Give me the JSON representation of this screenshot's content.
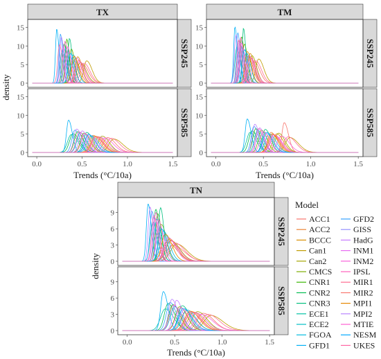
{
  "chart_data": {
    "type": "line",
    "title": "",
    "xlabel": "Trends (°C/10a)",
    "ylabel": "density",
    "xlim": [
      -0.1,
      1.55
    ],
    "x_ticks": [
      0.0,
      0.5,
      1.0,
      1.5
    ],
    "x_tick_labels": [
      "0.0",
      "0.5",
      "1.0",
      "1.5"
    ],
    "grid": false,
    "legend_title": "Model",
    "legend_placement": "bottom-right",
    "models": [
      {
        "name": "ACC1",
        "color": "#F8766D"
      },
      {
        "name": "ACC2",
        "color": "#EB8335"
      },
      {
        "name": "BCCC",
        "color": "#D98F00"
      },
      {
        "name": "Can1",
        "color": "#C09B00"
      },
      {
        "name": "Can2",
        "color": "#A3A500"
      },
      {
        "name": "CMCS",
        "color": "#7CAE00"
      },
      {
        "name": "CNR1",
        "color": "#39B600"
      },
      {
        "name": "CNR2",
        "color": "#00BB4E"
      },
      {
        "name": "CNR3",
        "color": "#00BF7D"
      },
      {
        "name": "ECE1",
        "color": "#00C1A3"
      },
      {
        "name": "ECE2",
        "color": "#00BFC4"
      },
      {
        "name": "FGOA",
        "color": "#00BAE0"
      },
      {
        "name": "GFD1",
        "color": "#00B0F6"
      },
      {
        "name": "GFD2",
        "color": "#35A2FF"
      },
      {
        "name": "GISS",
        "color": "#9590FF"
      },
      {
        "name": "HadG",
        "color": "#C77CFF"
      },
      {
        "name": "INM1",
        "color": "#E76BF3"
      },
      {
        "name": "INM2",
        "color": "#FA62DB"
      },
      {
        "name": "IPSL",
        "color": "#FF62BC"
      },
      {
        "name": "MIR1",
        "color": "#FF6C91"
      },
      {
        "name": "MIR2",
        "color": "#F8766D"
      },
      {
        "name": "MPI1",
        "color": "#E58700"
      },
      {
        "name": "MPI2",
        "color": "#B983FF"
      },
      {
        "name": "MTIE",
        "color": "#FD61D1"
      },
      {
        "name": "NESM",
        "color": "#00A9FF"
      },
      {
        "name": "UKES",
        "color": "#FF67A4"
      }
    ],
    "panels": [
      {
        "variable": "TX",
        "scenarios": [
          {
            "scenario": "SSP245",
            "ylim": [
              0,
              16
            ],
            "y_ticks": [
              0,
              5,
              10,
              15
            ],
            "peak_x": [
              0.5,
              0.42,
              0.45,
              0.55,
              0.48,
              0.38,
              0.33,
              0.3,
              0.36,
              0.28,
              0.32,
              0.4,
              0.22,
              0.26,
              0.35,
              0.29,
              0.44,
              0.47,
              0.31,
              0.52,
              0.46,
              0.41,
              0.27,
              0.34,
              0.37,
              0.25
            ],
            "peak_y": [
              5.2,
              6.4,
              7.1,
              6.0,
              5.6,
              9.2,
              11.8,
              10.6,
              12.0,
              8.8,
              9.5,
              7.6,
              14.6,
              13.2,
              8.4,
              10.0,
              6.8,
              5.9,
              11.2,
              5.4,
              6.2,
              7.3,
              12.4,
              9.8,
              8.0,
              10.4
            ]
          },
          {
            "scenario": "SSP585",
            "ylim": [
              0,
              16
            ],
            "y_ticks": [
              0,
              5,
              10,
              15
            ],
            "peak_x": [
              0.78,
              0.62,
              0.68,
              0.85,
              0.72,
              0.52,
              0.45,
              0.4,
              0.55,
              0.38,
              0.48,
              0.6,
              0.35,
              0.42,
              0.58,
              0.5,
              0.7,
              0.75,
              0.47,
              0.82,
              0.66,
              0.64,
              0.44,
              0.53,
              0.57,
              0.65
            ],
            "peak_y": [
              4.0,
              4.6,
              4.2,
              3.6,
              4.4,
              5.2,
              5.6,
              5.0,
              5.4,
              4.8,
              5.3,
              4.5,
              8.7,
              6.0,
              4.7,
              5.8,
              4.1,
              3.9,
              5.5,
              3.8,
              4.3,
              4.4,
              6.3,
              5.1,
              4.9,
              4.2
            ]
          }
        ]
      },
      {
        "variable": "TM",
        "scenarios": [
          {
            "scenario": "SSP245",
            "ylim": [
              0,
              16
            ],
            "y_ticks": [
              0,
              5,
              10,
              15
            ],
            "peak_x": [
              0.4,
              0.34,
              0.36,
              0.45,
              0.38,
              0.3,
              0.27,
              0.24,
              0.29,
              0.22,
              0.26,
              0.32,
              0.2,
              0.23,
              0.28,
              0.25,
              0.35,
              0.37,
              0.26,
              0.42,
              0.36,
              0.33,
              0.21,
              0.27,
              0.3,
              0.24
            ],
            "peak_y": [
              6.0,
              7.2,
              8.0,
              6.5,
              7.4,
              10.5,
              12.5,
              11.4,
              14.8,
              9.6,
              10.2,
              8.2,
              15.2,
              13.6,
              9.2,
              11.2,
              7.5,
              6.8,
              12.2,
              6.0,
              7.0,
              8.5,
              13.0,
              10.8,
              9.0,
              11.6
            ]
          },
          {
            "scenario": "SSP585",
            "ylim": [
              0,
              16
            ],
            "y_ticks": [
              0,
              5,
              10,
              15
            ],
            "peak_x": [
              0.72,
              0.58,
              0.64,
              0.78,
              0.66,
              0.48,
              0.42,
              0.38,
              0.52,
              0.36,
              0.44,
              0.56,
              0.33,
              0.4,
              0.54,
              0.46,
              0.62,
              0.69,
              0.45,
              0.76,
              0.6,
              0.59,
              0.41,
              0.5,
              0.53,
              0.61
            ],
            "peak_y": [
              8.0,
              5.4,
              5.0,
              4.0,
              5.2,
              6.0,
              6.4,
              5.8,
              6.2,
              5.4,
              6.0,
              5.0,
              9.0,
              7.0,
              5.2,
              6.6,
              4.6,
              4.4,
              6.4,
              4.2,
              4.8,
              5.0,
              7.6,
              5.6,
              5.4,
              4.8
            ]
          }
        ]
      },
      {
        "variable": "TN",
        "scenarios": [
          {
            "scenario": "SSP245",
            "ylim": [
              0,
              11
            ],
            "y_ticks": [
              0,
              3,
              6,
              9
            ],
            "peak_x": [
              0.48,
              0.42,
              0.44,
              0.52,
              0.46,
              0.36,
              0.32,
              0.3,
              0.35,
              0.27,
              0.31,
              0.38,
              0.22,
              0.26,
              0.34,
              0.29,
              0.43,
              0.45,
              0.3,
              0.5,
              0.44,
              0.4,
              0.24,
              0.33,
              0.36,
              0.28
            ],
            "peak_y": [
              3.0,
              3.6,
              4.0,
              3.2,
              3.8,
              6.8,
              8.8,
              9.6,
              9.9,
              7.2,
              7.8,
              5.6,
              10.6,
              9.2,
              6.4,
              8.0,
              4.4,
              3.8,
              9.0,
              3.4,
              4.2,
              5.0,
              10.0,
              7.6,
              6.0,
              8.4
            ]
          },
          {
            "scenario": "SSP585",
            "ylim": [
              0,
              11
            ],
            "y_ticks": [
              0,
              3,
              6,
              9
            ],
            "peak_x": [
              0.8,
              0.62,
              0.7,
              0.88,
              0.74,
              0.55,
              0.48,
              0.43,
              0.58,
              0.4,
              0.5,
              0.63,
              0.38,
              0.45,
              0.6,
              0.52,
              0.72,
              0.78,
              0.49,
              0.85,
              0.68,
              0.66,
              0.47,
              0.56,
              0.59,
              0.67
            ],
            "peak_y": [
              3.2,
              3.6,
              3.4,
              2.8,
              3.5,
              4.4,
              4.8,
              5.0,
              4.6,
              4.0,
              4.4,
              3.8,
              7.2,
              5.2,
              3.9,
              5.6,
              3.3,
              3.0,
              4.7,
              3.0,
              3.5,
              3.6,
              5.8,
              4.2,
              4.1,
              3.4
            ]
          }
        ]
      }
    ]
  }
}
